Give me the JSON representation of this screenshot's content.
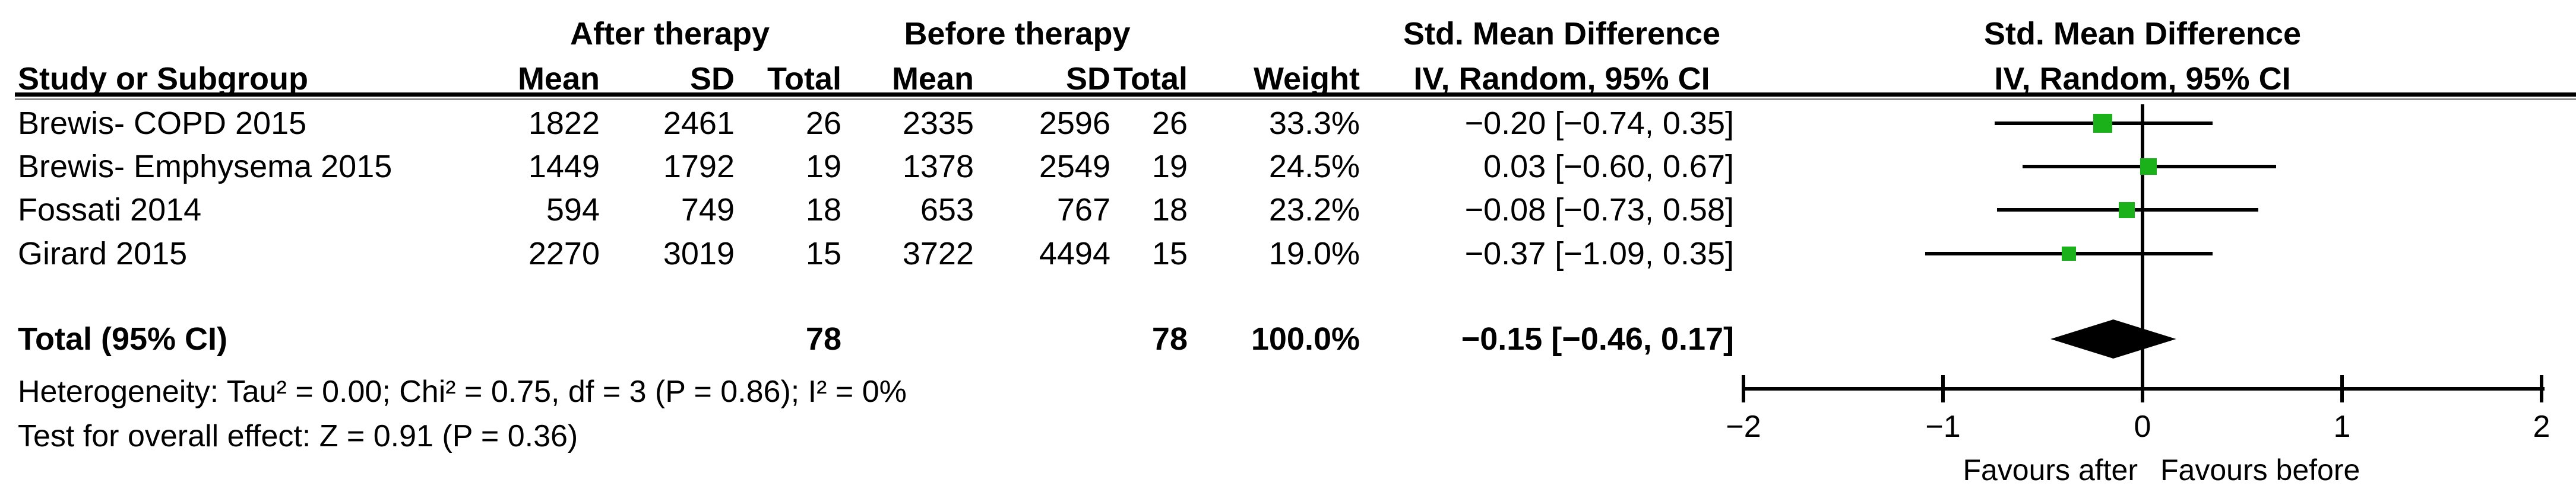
{
  "chart_data": {
    "type": "forest",
    "title": "Std. Mean Difference forest plot (IV, Random, 95% CI)",
    "headers": {
      "group1": "After therapy",
      "group2": "Before therapy",
      "effect": "Std. Mean Difference",
      "method": "IV, Random, 95% CI",
      "study": "Study or Subgroup",
      "mean": "Mean",
      "sd": "SD",
      "total": "Total",
      "weight": "Weight"
    },
    "studies": [
      {
        "name": "Brewis- COPD 2015",
        "mean1": "1822",
        "sd1": "2461",
        "n1": "26",
        "mean2": "2335",
        "sd2": "2596",
        "n2": "26",
        "weight_text": "33.3%",
        "weight_pct": 33.3,
        "est": -0.2,
        "lo": -0.74,
        "hi": 0.35,
        "ci_text": "−0.20 [−0.74, 0.35]"
      },
      {
        "name": "Brewis- Emphysema 2015",
        "mean1": "1449",
        "sd1": "1792",
        "n1": "19",
        "mean2": "1378",
        "sd2": "2549",
        "n2": "19",
        "weight_text": "24.5%",
        "weight_pct": 24.5,
        "est": 0.03,
        "lo": -0.6,
        "hi": 0.67,
        "ci_text": "0.03 [−0.60, 0.67]"
      },
      {
        "name": "Fossati 2014",
        "mean1": "594",
        "sd1": "749",
        "n1": "18",
        "mean2": "653",
        "sd2": "767",
        "n2": "18",
        "weight_text": "23.2%",
        "weight_pct": 23.2,
        "est": -0.08,
        "lo": -0.73,
        "hi": 0.58,
        "ci_text": "−0.08 [−0.73, 0.58]"
      },
      {
        "name": "Girard 2015",
        "mean1": "2270",
        "sd1": "3019",
        "n1": "15",
        "mean2": "3722",
        "sd2": "4494",
        "n2": "15",
        "weight_text": "19.0%",
        "weight_pct": 19.0,
        "est": -0.37,
        "lo": -1.09,
        "hi": 0.35,
        "ci_text": "−0.37 [−1.09, 0.35]"
      }
    ],
    "total": {
      "label": "Total (95% CI)",
      "n1": "78",
      "n2": "78",
      "weight_text": "100.0%",
      "est": -0.15,
      "lo": -0.46,
      "hi": 0.17,
      "ci_text": "−0.15 [−0.46, 0.17]"
    },
    "footer": {
      "heterogeneity": "Heterogeneity: Tau² = 0.00; Chi² = 0.75, df = 3 (P = 0.86); I² = 0%",
      "overall": "Test for overall effect: Z = 0.91 (P = 0.36)"
    },
    "axis": {
      "min": -2,
      "max": 2,
      "tick_values": [
        -2,
        -1,
        0,
        1,
        2
      ],
      "tick_labels": [
        "−2",
        "−1",
        "0",
        "1",
        "2"
      ],
      "favours_left": "Favours after",
      "favours_right": "Favours before"
    },
    "colors": {
      "marker": "#1ab11a",
      "line": "#000000",
      "diamond": "#000000",
      "rule_gray": "#8c8c8c"
    }
  }
}
